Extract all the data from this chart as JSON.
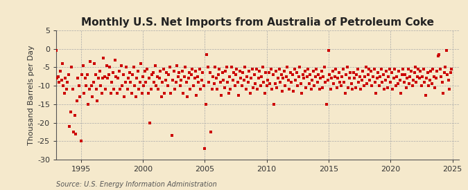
{
  "title": "Monthly U.S. Net Imports from Australia of Petroleum Coke",
  "ylabel": "Thousand Barrels per Day",
  "source": "Source: U.S. Energy Information Administration",
  "ylim": [
    -30,
    5
  ],
  "yticks": [
    5,
    0,
    -5,
    -10,
    -15,
    -20,
    -25,
    -30
  ],
  "xlim": [
    1993.0,
    2025.5
  ],
  "xticks": [
    1995,
    2000,
    2005,
    2010,
    2015,
    2020,
    2025
  ],
  "dot_color": "#cc0000",
  "bg_color": "#f5e9cc",
  "plot_bg_color": "#f5e9cc",
  "grid_color": "#aaaaaa",
  "spine_color": "#555555",
  "title_fontsize": 11,
  "label_fontsize": 8,
  "tick_fontsize": 8,
  "source_fontsize": 7,
  "data_points": [
    [
      1993.0,
      -0.5
    ],
    [
      1993.08,
      -8.0
    ],
    [
      1993.17,
      -7.5
    ],
    [
      1993.25,
      -9.0
    ],
    [
      1993.33,
      -6.0
    ],
    [
      1993.42,
      -8.5
    ],
    [
      1993.5,
      -4.0
    ],
    [
      1993.58,
      -10.0
    ],
    [
      1993.67,
      -12.0
    ],
    [
      1993.75,
      -8.0
    ],
    [
      1993.83,
      -11.0
    ],
    [
      1993.92,
      -9.0
    ],
    [
      1994.0,
      -7.0
    ],
    [
      1994.08,
      -21.0
    ],
    [
      1994.17,
      -17.0
    ],
    [
      1994.25,
      -5.0
    ],
    [
      1994.33,
      -11.0
    ],
    [
      1994.42,
      -22.5
    ],
    [
      1994.5,
      -18.0
    ],
    [
      1994.58,
      -23.0
    ],
    [
      1994.67,
      -14.0
    ],
    [
      1994.75,
      -8.0
    ],
    [
      1994.83,
      -10.0
    ],
    [
      1994.92,
      -13.0
    ],
    [
      1995.0,
      -25.0
    ],
    [
      1995.08,
      -7.0
    ],
    [
      1995.17,
      -4.5
    ],
    [
      1995.25,
      -12.0
    ],
    [
      1995.33,
      -8.0
    ],
    [
      1995.42,
      -10.0
    ],
    [
      1995.5,
      -7.0
    ],
    [
      1995.58,
      -15.0
    ],
    [
      1995.67,
      -11.0
    ],
    [
      1995.75,
      -3.5
    ],
    [
      1995.83,
      -10.0
    ],
    [
      1995.92,
      -13.0
    ],
    [
      1996.0,
      -9.0
    ],
    [
      1996.08,
      -4.0
    ],
    [
      1996.17,
      -7.0
    ],
    [
      1996.25,
      -11.0
    ],
    [
      1996.33,
      -14.0
    ],
    [
      1996.42,
      -8.0
    ],
    [
      1996.5,
      -6.0
    ],
    [
      1996.58,
      -10.0
    ],
    [
      1996.67,
      -12.0
    ],
    [
      1996.75,
      -8.0
    ],
    [
      1996.83,
      -2.5
    ],
    [
      1996.92,
      -7.5
    ],
    [
      1997.0,
      -11.0
    ],
    [
      1997.08,
      -4.5
    ],
    [
      1997.17,
      -8.0
    ],
    [
      1997.25,
      -7.0
    ],
    [
      1997.33,
      -5.0
    ],
    [
      1997.42,
      -12.0
    ],
    [
      1997.5,
      -9.0
    ],
    [
      1997.58,
      -6.5
    ],
    [
      1997.67,
      -11.0
    ],
    [
      1997.75,
      -3.0
    ],
    [
      1997.83,
      -7.5
    ],
    [
      1997.92,
      -12.0
    ],
    [
      1998.0,
      -8.0
    ],
    [
      1998.08,
      -6.0
    ],
    [
      1998.17,
      -11.0
    ],
    [
      1998.25,
      -4.5
    ],
    [
      1998.33,
      -10.0
    ],
    [
      1998.42,
      -7.0
    ],
    [
      1998.5,
      -13.0
    ],
    [
      1998.58,
      -9.0
    ],
    [
      1998.67,
      -5.0
    ],
    [
      1998.75,
      -11.0
    ],
    [
      1998.83,
      -8.0
    ],
    [
      1998.92,
      -6.5
    ],
    [
      1999.0,
      -9.0
    ],
    [
      1999.08,
      -12.0
    ],
    [
      1999.17,
      -7.0
    ],
    [
      1999.25,
      -5.0
    ],
    [
      1999.33,
      -10.0
    ],
    [
      1999.42,
      -13.0
    ],
    [
      1999.5,
      -8.0
    ],
    [
      1999.58,
      -6.0
    ],
    [
      1999.67,
      -11.0
    ],
    [
      1999.75,
      -9.0
    ],
    [
      1999.83,
      -4.0
    ],
    [
      1999.92,
      -12.0
    ],
    [
      2000.0,
      -7.5
    ],
    [
      2000.08,
      -10.0
    ],
    [
      2000.17,
      -6.0
    ],
    [
      2000.25,
      -9.0
    ],
    [
      2000.33,
      -5.5
    ],
    [
      2000.42,
      -12.0
    ],
    [
      2000.5,
      -8.0
    ],
    [
      2000.58,
      -20.0
    ],
    [
      2000.67,
      -11.0
    ],
    [
      2000.75,
      -7.0
    ],
    [
      2000.83,
      -6.5
    ],
    [
      2000.92,
      -9.0
    ],
    [
      2001.0,
      -4.5
    ],
    [
      2001.08,
      -10.0
    ],
    [
      2001.17,
      -7.5
    ],
    [
      2001.25,
      -11.0
    ],
    [
      2001.33,
      -8.0
    ],
    [
      2001.42,
      -6.0
    ],
    [
      2001.5,
      -13.0
    ],
    [
      2001.58,
      -9.0
    ],
    [
      2001.67,
      -5.5
    ],
    [
      2001.75,
      -12.0
    ],
    [
      2001.83,
      -8.5
    ],
    [
      2001.92,
      -6.5
    ],
    [
      2002.0,
      -10.0
    ],
    [
      2002.08,
      -7.0
    ],
    [
      2002.17,
      -5.0
    ],
    [
      2002.25,
      -12.0
    ],
    [
      2002.33,
      -23.5
    ],
    [
      2002.42,
      -8.5
    ],
    [
      2002.5,
      -6.0
    ],
    [
      2002.58,
      -11.0
    ],
    [
      2002.67,
      -9.0
    ],
    [
      2002.75,
      -4.5
    ],
    [
      2002.83,
      -7.5
    ],
    [
      2002.92,
      -6.5
    ],
    [
      2003.0,
      -10.0
    ],
    [
      2003.08,
      -8.5
    ],
    [
      2003.17,
      -6.0
    ],
    [
      2003.25,
      -12.0
    ],
    [
      2003.33,
      -7.5
    ],
    [
      2003.42,
      -5.0
    ],
    [
      2003.5,
      -9.0
    ],
    [
      2003.58,
      -13.0
    ],
    [
      2003.67,
      -8.0
    ],
    [
      2003.75,
      -6.5
    ],
    [
      2003.83,
      -11.0
    ],
    [
      2003.92,
      -7.0
    ],
    [
      2004.0,
      -5.5
    ],
    [
      2004.08,
      -10.0
    ],
    [
      2004.17,
      -8.0
    ],
    [
      2004.25,
      -6.0
    ],
    [
      2004.33,
      -12.5
    ],
    [
      2004.42,
      -7.5
    ],
    [
      2004.5,
      -9.0
    ],
    [
      2004.58,
      -5.5
    ],
    [
      2004.67,
      -11.0
    ],
    [
      2004.75,
      -8.5
    ],
    [
      2004.83,
      -6.5
    ],
    [
      2004.92,
      -10.0
    ],
    [
      2005.0,
      -27.0
    ],
    [
      2005.08,
      -15.0
    ],
    [
      2005.17,
      -1.5
    ],
    [
      2005.25,
      -5.0
    ],
    [
      2005.33,
      -9.0
    ],
    [
      2005.42,
      -6.5
    ],
    [
      2005.5,
      -22.5
    ],
    [
      2005.58,
      -11.0
    ],
    [
      2005.67,
      -7.5
    ],
    [
      2005.75,
      -9.5
    ],
    [
      2005.83,
      -5.0
    ],
    [
      2005.92,
      -8.0
    ],
    [
      2006.0,
      -11.0
    ],
    [
      2006.08,
      -7.0
    ],
    [
      2006.17,
      -5.5
    ],
    [
      2006.25,
      -9.0
    ],
    [
      2006.33,
      -12.5
    ],
    [
      2006.42,
      -6.5
    ],
    [
      2006.5,
      -8.5
    ],
    [
      2006.58,
      -10.5
    ],
    [
      2006.67,
      -6.0
    ],
    [
      2006.75,
      -5.0
    ],
    [
      2006.83,
      -9.0
    ],
    [
      2006.92,
      -12.0
    ],
    [
      2007.0,
      -7.5
    ],
    [
      2007.08,
      -11.0
    ],
    [
      2007.17,
      -5.0
    ],
    [
      2007.25,
      -8.5
    ],
    [
      2007.33,
      -6.5
    ],
    [
      2007.42,
      -10.0
    ],
    [
      2007.5,
      -7.0
    ],
    [
      2007.58,
      -5.5
    ],
    [
      2007.67,
      -9.0
    ],
    [
      2007.75,
      -12.5
    ],
    [
      2007.83,
      -6.0
    ],
    [
      2007.92,
      -8.0
    ],
    [
      2008.0,
      -10.0
    ],
    [
      2008.08,
      -6.5
    ],
    [
      2008.17,
      -8.5
    ],
    [
      2008.25,
      -5.0
    ],
    [
      2008.33,
      -11.0
    ],
    [
      2008.42,
      -7.5
    ],
    [
      2008.5,
      -9.0
    ],
    [
      2008.58,
      -6.0
    ],
    [
      2008.67,
      -12.0
    ],
    [
      2008.75,
      -8.0
    ],
    [
      2008.83,
      -5.5
    ],
    [
      2008.92,
      -10.5
    ],
    [
      2009.0,
      -7.0
    ],
    [
      2009.08,
      -9.5
    ],
    [
      2009.17,
      -5.5
    ],
    [
      2009.25,
      -11.0
    ],
    [
      2009.33,
      -8.0
    ],
    [
      2009.42,
      -6.0
    ],
    [
      2009.5,
      -10.0
    ],
    [
      2009.58,
      -7.5
    ],
    [
      2009.67,
      -5.0
    ],
    [
      2009.75,
      -9.0
    ],
    [
      2009.83,
      -12.0
    ],
    [
      2009.92,
      -6.5
    ],
    [
      2010.0,
      -10.0
    ],
    [
      2010.08,
      -8.5
    ],
    [
      2010.17,
      -6.5
    ],
    [
      2010.25,
      -9.5
    ],
    [
      2010.33,
      -5.5
    ],
    [
      2010.42,
      -11.0
    ],
    [
      2010.5,
      -7.0
    ],
    [
      2010.58,
      -15.0
    ],
    [
      2010.67,
      -9.5
    ],
    [
      2010.75,
      -6.0
    ],
    [
      2010.83,
      -10.5
    ],
    [
      2010.92,
      -8.0
    ],
    [
      2011.0,
      -5.5
    ],
    [
      2011.08,
      -9.0
    ],
    [
      2011.17,
      -7.0
    ],
    [
      2011.25,
      -11.5
    ],
    [
      2011.33,
      -8.0
    ],
    [
      2011.42,
      -6.0
    ],
    [
      2011.5,
      -10.0
    ],
    [
      2011.58,
      -7.5
    ],
    [
      2011.67,
      -5.0
    ],
    [
      2011.75,
      -8.5
    ],
    [
      2011.83,
      -11.0
    ],
    [
      2011.92,
      -6.5
    ],
    [
      2012.0,
      -9.0
    ],
    [
      2012.08,
      -7.0
    ],
    [
      2012.17,
      -11.5
    ],
    [
      2012.25,
      -5.5
    ],
    [
      2012.33,
      -8.5
    ],
    [
      2012.42,
      -6.5
    ],
    [
      2012.5,
      -10.0
    ],
    [
      2012.58,
      -7.5
    ],
    [
      2012.67,
      -5.0
    ],
    [
      2012.75,
      -9.5
    ],
    [
      2012.83,
      -12.0
    ],
    [
      2012.92,
      -7.0
    ],
    [
      2013.0,
      -8.0
    ],
    [
      2013.08,
      -6.0
    ],
    [
      2013.17,
      -10.5
    ],
    [
      2013.25,
      -7.5
    ],
    [
      2013.33,
      -5.5
    ],
    [
      2013.42,
      -9.5
    ],
    [
      2013.5,
      -7.0
    ],
    [
      2013.58,
      -11.0
    ],
    [
      2013.67,
      -8.5
    ],
    [
      2013.75,
      -6.0
    ],
    [
      2013.83,
      -10.0
    ],
    [
      2013.92,
      -7.5
    ],
    [
      2014.0,
      -5.5
    ],
    [
      2014.08,
      -9.0
    ],
    [
      2014.17,
      -7.0
    ],
    [
      2014.25,
      -11.0
    ],
    [
      2014.33,
      -8.0
    ],
    [
      2014.42,
      -6.0
    ],
    [
      2014.5,
      -10.5
    ],
    [
      2014.58,
      -7.5
    ],
    [
      2014.67,
      -5.0
    ],
    [
      2014.75,
      -9.0
    ],
    [
      2014.83,
      -15.0
    ],
    [
      2014.92,
      -8.5
    ],
    [
      2015.0,
      -0.5
    ],
    [
      2015.08,
      -7.0
    ],
    [
      2015.17,
      -11.0
    ],
    [
      2015.25,
      -8.0
    ],
    [
      2015.33,
      -6.0
    ],
    [
      2015.42,
      -9.5
    ],
    [
      2015.5,
      -7.5
    ],
    [
      2015.58,
      -5.5
    ],
    [
      2015.67,
      -10.5
    ],
    [
      2015.75,
      -8.0
    ],
    [
      2015.83,
      -6.5
    ],
    [
      2015.92,
      -9.0
    ],
    [
      2016.0,
      -10.0
    ],
    [
      2016.08,
      -7.5
    ],
    [
      2016.17,
      -5.5
    ],
    [
      2016.25,
      -9.0
    ],
    [
      2016.33,
      -12.0
    ],
    [
      2016.42,
      -7.0
    ],
    [
      2016.5,
      -5.0
    ],
    [
      2016.58,
      -10.5
    ],
    [
      2016.67,
      -8.0
    ],
    [
      2016.75,
      -6.5
    ],
    [
      2016.83,
      -9.5
    ],
    [
      2016.92,
      -11.0
    ],
    [
      2017.0,
      -6.5
    ],
    [
      2017.08,
      -8.0
    ],
    [
      2017.17,
      -10.5
    ],
    [
      2017.25,
      -7.0
    ],
    [
      2017.33,
      -5.5
    ],
    [
      2017.42,
      -9.0
    ],
    [
      2017.5,
      -7.5
    ],
    [
      2017.58,
      -11.0
    ],
    [
      2017.67,
      -8.5
    ],
    [
      2017.75,
      -6.0
    ],
    [
      2017.83,
      -10.0
    ],
    [
      2017.92,
      -7.5
    ],
    [
      2018.0,
      -5.0
    ],
    [
      2018.08,
      -9.5
    ],
    [
      2018.17,
      -7.0
    ],
    [
      2018.25,
      -5.5
    ],
    [
      2018.33,
      -8.5
    ],
    [
      2018.42,
      -6.0
    ],
    [
      2018.5,
      -10.0
    ],
    [
      2018.58,
      -7.5
    ],
    [
      2018.67,
      -5.5
    ],
    [
      2018.75,
      -9.0
    ],
    [
      2018.83,
      -12.0
    ],
    [
      2018.92,
      -8.0
    ],
    [
      2019.0,
      -6.5
    ],
    [
      2019.08,
      -10.0
    ],
    [
      2019.17,
      -7.5
    ],
    [
      2019.25,
      -5.5
    ],
    [
      2019.33,
      -9.0
    ],
    [
      2019.42,
      -7.0
    ],
    [
      2019.5,
      -11.0
    ],
    [
      2019.58,
      -8.5
    ],
    [
      2019.67,
      -6.0
    ],
    [
      2019.75,
      -10.5
    ],
    [
      2019.83,
      -7.5
    ],
    [
      2019.92,
      -5.5
    ],
    [
      2020.0,
      -9.0
    ],
    [
      2020.08,
      -6.5
    ],
    [
      2020.17,
      -11.0
    ],
    [
      2020.25,
      -8.0
    ],
    [
      2020.33,
      -5.5
    ],
    [
      2020.42,
      -10.0
    ],
    [
      2020.5,
      -7.5
    ],
    [
      2020.58,
      -9.5
    ],
    [
      2020.67,
      -6.0
    ],
    [
      2020.75,
      -8.5
    ],
    [
      2020.83,
      -12.0
    ],
    [
      2020.92,
      -7.0
    ],
    [
      2021.0,
      -5.5
    ],
    [
      2021.08,
      -9.0
    ],
    [
      2021.17,
      -7.0
    ],
    [
      2021.25,
      -10.5
    ],
    [
      2021.33,
      -8.0
    ],
    [
      2021.42,
      -5.5
    ],
    [
      2021.5,
      -9.5
    ],
    [
      2021.58,
      -7.5
    ],
    [
      2021.67,
      -6.0
    ],
    [
      2021.75,
      -10.0
    ],
    [
      2021.83,
      -8.5
    ],
    [
      2021.92,
      -6.5
    ],
    [
      2022.0,
      -5.0
    ],
    [
      2022.08,
      -9.0
    ],
    [
      2022.17,
      -7.5
    ],
    [
      2022.25,
      -5.5
    ],
    [
      2022.33,
      -8.0
    ],
    [
      2022.42,
      -6.0
    ],
    [
      2022.5,
      -10.0
    ],
    [
      2022.58,
      -7.5
    ],
    [
      2022.67,
      -5.5
    ],
    [
      2022.75,
      -9.0
    ],
    [
      2022.83,
      -12.5
    ],
    [
      2022.92,
      -8.0
    ],
    [
      2023.0,
      -6.5
    ],
    [
      2023.08,
      -10.0
    ],
    [
      2023.17,
      -8.5
    ],
    [
      2023.25,
      -6.0
    ],
    [
      2023.33,
      -9.5
    ],
    [
      2023.42,
      -5.5
    ],
    [
      2023.5,
      -7.5
    ],
    [
      2023.58,
      -10.5
    ],
    [
      2023.67,
      -8.0
    ],
    [
      2023.75,
      -6.0
    ],
    [
      2023.83,
      -2.0
    ],
    [
      2023.92,
      -1.5
    ],
    [
      2024.0,
      -5.5
    ],
    [
      2024.08,
      -7.5
    ],
    [
      2024.17,
      -9.0
    ],
    [
      2024.25,
      -12.0
    ],
    [
      2024.33,
      -6.5
    ],
    [
      2024.42,
      -5.0
    ],
    [
      2024.5,
      -0.5
    ],
    [
      2024.58,
      -7.0
    ],
    [
      2024.67,
      -8.5
    ],
    [
      2024.75,
      -11.0
    ],
    [
      2024.83,
      -6.5
    ],
    [
      2024.92,
      -5.5
    ]
  ]
}
